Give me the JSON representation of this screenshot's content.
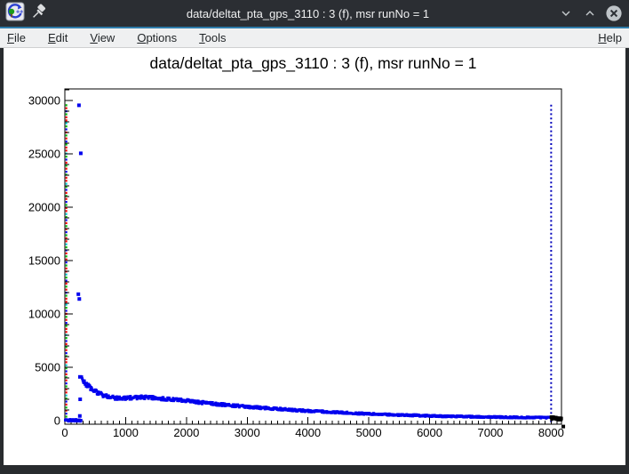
{
  "window": {
    "title": "data/deltat_pta_gps_3110 : 3 (f), msr runNo = 1",
    "accent_color": "#2f7cab",
    "icons": {
      "app": "root-logo",
      "pin": "pushpin",
      "minimize": "chevron-down",
      "restore": "chevron-up",
      "close": "circle-x"
    }
  },
  "menubar": {
    "items": [
      "File",
      "Edit",
      "View",
      "Options",
      "Tools"
    ],
    "help": "Help"
  },
  "chart_data": {
    "type": "scatter",
    "title": "data/deltat_pta_gps_3110 : 3 (f), msr runNo = 1",
    "xlabel": "",
    "ylabel": "",
    "xlim": [
      0,
      8170
    ],
    "ylim": [
      -333,
      31083
    ],
    "x_ticks": [
      0,
      1000,
      2000,
      3000,
      4000,
      5000,
      6000,
      7000,
      8000
    ],
    "x_minor_step": 100,
    "y_ticks": [
      0,
      5000,
      10000,
      15000,
      20000,
      25000,
      30000
    ],
    "y_minor_step": 1000,
    "grid": false,
    "legend": "none",
    "marker_color": "#0000ee",
    "marker_shape": "square",
    "pre_t0_band": {
      "x_start": 8,
      "x_end": 270,
      "y_mean": 30,
      "y_jitter": 90,
      "step": 7
    },
    "spike_points": [
      [
        232,
        29550
      ],
      [
        262,
        25050
      ],
      [
        222,
        11850
      ],
      [
        238,
        11400
      ],
      [
        248,
        4100
      ],
      [
        252,
        2000
      ],
      [
        246,
        440
      ]
    ],
    "decay_band": {
      "x_start": 278,
      "x_end": 7995,
      "step": 9,
      "control_points": [
        [
          278,
          4150
        ],
        [
          300,
          3800
        ],
        [
          350,
          3400
        ],
        [
          400,
          3150
        ],
        [
          500,
          2750
        ],
        [
          600,
          2450
        ],
        [
          700,
          2250
        ],
        [
          800,
          2150
        ],
        [
          900,
          2100
        ],
        [
          1000,
          2100
        ],
        [
          1100,
          2150
        ],
        [
          1250,
          2200
        ],
        [
          1400,
          2150
        ],
        [
          1600,
          2050
        ],
        [
          1800,
          1950
        ],
        [
          2000,
          1850
        ],
        [
          2250,
          1700
        ],
        [
          2500,
          1550
        ],
        [
          2750,
          1430
        ],
        [
          3000,
          1300
        ],
        [
          3250,
          1200
        ],
        [
          3500,
          1100
        ],
        [
          3750,
          1000
        ],
        [
          4000,
          920
        ],
        [
          4250,
          840
        ],
        [
          4500,
          770
        ],
        [
          4750,
          700
        ],
        [
          5000,
          640
        ],
        [
          5250,
          580
        ],
        [
          5500,
          530
        ],
        [
          5750,
          490
        ],
        [
          6000,
          450
        ],
        [
          6250,
          415
        ],
        [
          6500,
          385
        ],
        [
          6750,
          360
        ],
        [
          7000,
          340
        ],
        [
          7250,
          320
        ],
        [
          7500,
          305
        ],
        [
          7750,
          290
        ],
        [
          8000,
          280
        ]
      ]
    },
    "tail_band": {
      "color": "#000000",
      "x_start": 8005,
      "x_end": 8165,
      "step": 8,
      "y_start": 260,
      "y_end": 120
    },
    "end_marker": {
      "x": 8200,
      "y": -550,
      "color": "#000000"
    },
    "t0_line": {
      "x": 25,
      "y0": 0,
      "y1": 29600,
      "dash_colors": [
        "#ff0000",
        "#00bb00",
        "#0000ee",
        "#ff0000",
        "#00bb00",
        "#ff0000",
        "#0000ee",
        "#00bb00",
        "#00cccc",
        "#ff0000"
      ]
    },
    "range_line": {
      "x": 8000,
      "y0": 0,
      "y1": 29600,
      "color": "#0000bb",
      "style": "dotted"
    }
  }
}
